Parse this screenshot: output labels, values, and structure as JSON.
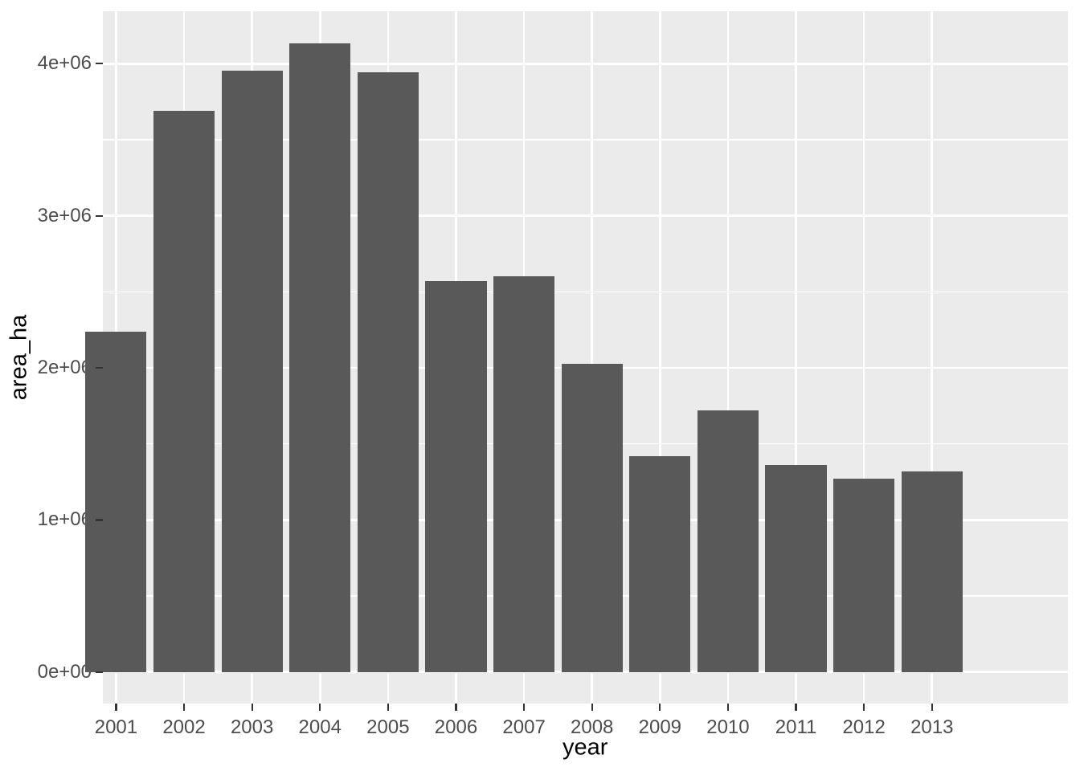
{
  "chart_data": {
    "type": "bar",
    "title": "",
    "xlabel": "year",
    "ylabel": "area_ha",
    "categories": [
      "2001",
      "2002",
      "2003",
      "2004",
      "2005",
      "2006",
      "2007",
      "2008",
      "2009",
      "2010",
      "2011",
      "2012",
      "2013"
    ],
    "values": [
      2240000,
      3690000,
      3955000,
      4135000,
      3945000,
      2570000,
      2600000,
      2025000,
      1420000,
      1720000,
      1360000,
      1270000,
      1320000
    ],
    "y_ticks": {
      "values": [
        0,
        1000000,
        2000000,
        3000000,
        4000000
      ],
      "labels": [
        "0e+00",
        "1e+06",
        "2e+06",
        "3e+06",
        "4e+06"
      ]
    },
    "y_minor_ticks": [
      500000,
      1500000,
      2500000,
      3500000
    ],
    "ylim": [
      0,
      4140000
    ],
    "panel_ylim": [
      -207000,
      4345000
    ],
    "x_expand": 0.6,
    "bar_width_ratio": 0.9,
    "grid": "major-white-and-minor-white",
    "legend": "none",
    "colors": {
      "bar_fill": "#595959",
      "panel_bg": "#EBEBEB",
      "grid": "#FFFFFF",
      "tick_text": "#4D4D4D",
      "axis_title": "#000000",
      "tick_mark": "#333333",
      "figure_bg": "#FFFFFF"
    }
  }
}
